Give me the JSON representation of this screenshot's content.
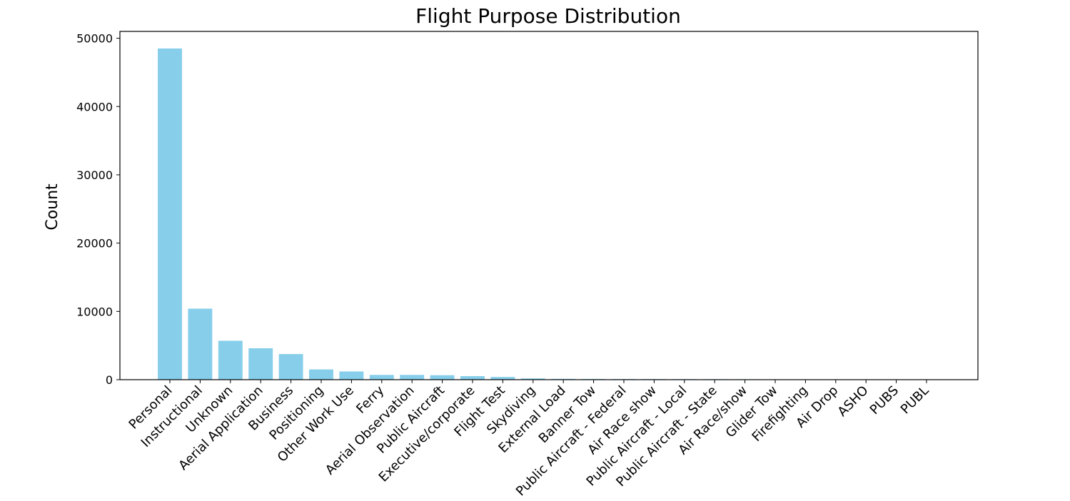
{
  "chart_data": {
    "type": "bar",
    "title": "Flight Purpose Distribution",
    "xlabel": "",
    "ylabel": "Count",
    "ylim": [
      0,
      51000
    ],
    "yticks": [
      0,
      10000,
      20000,
      30000,
      40000,
      50000
    ],
    "grid": false,
    "bar_color": "#87CEEB",
    "categories": [
      "Personal",
      "Instructional",
      "Unknown",
      "Aerial Application",
      "Business",
      "Positioning",
      "Other Work Use",
      "Ferry",
      "Aerial Observation",
      "Public Aircraft",
      "Executive/corporate",
      "Flight Test",
      "Skydiving",
      "External Load",
      "Banner Tow",
      "Public Aircraft - Federal",
      "Air Race show",
      "Public Aircraft - Local",
      "Public Aircraft - State",
      "Air Race/show",
      "Glider Tow",
      "Firefighting",
      "Air Drop",
      "ASHO",
      "PUBS",
      "PUBL"
    ],
    "values": [
      48500,
      10400,
      5700,
      4600,
      3750,
      1500,
      1200,
      700,
      700,
      650,
      520,
      400,
      180,
      120,
      100,
      90,
      90,
      80,
      70,
      60,
      50,
      40,
      10,
      6,
      4,
      1
    ]
  }
}
